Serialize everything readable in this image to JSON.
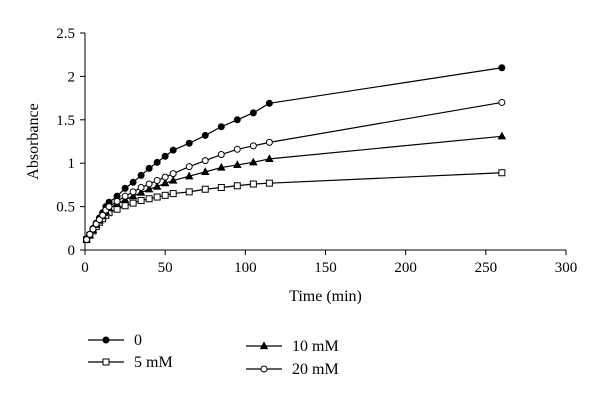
{
  "chart_data": {
    "type": "line",
    "xlabel": "Time (min)",
    "ylabel": "Absorbance",
    "xlim": [
      0,
      300
    ],
    "ylim": [
      0,
      2.5
    ],
    "xticks": [
      "0",
      "50",
      "100",
      "150",
      "200",
      "250",
      "300"
    ],
    "yticks": [
      "0",
      "0.5",
      "1",
      "1.5",
      "2",
      "2.5"
    ],
    "grid": false,
    "legend_position": "bottom",
    "series": [
      {
        "name": "0",
        "marker": "filled-circle",
        "x": [
          1,
          3,
          5,
          7,
          9,
          11,
          13,
          15,
          20,
          25,
          30,
          35,
          40,
          45,
          50,
          55,
          65,
          75,
          85,
          95,
          105,
          115,
          260
        ],
        "y": [
          0.13,
          0.18,
          0.25,
          0.31,
          0.37,
          0.43,
          0.5,
          0.55,
          0.62,
          0.71,
          0.78,
          0.86,
          0.94,
          1.01,
          1.08,
          1.15,
          1.23,
          1.32,
          1.42,
          1.5,
          1.58,
          1.69,
          2.1
        ]
      },
      {
        "name": "5 mM",
        "marker": "open-square",
        "x": [
          1,
          3,
          5,
          7,
          9,
          11,
          13,
          15,
          20,
          25,
          30,
          35,
          40,
          45,
          50,
          55,
          65,
          75,
          85,
          95,
          105,
          115,
          260
        ],
        "y": [
          0.12,
          0.17,
          0.22,
          0.27,
          0.32,
          0.36,
          0.4,
          0.43,
          0.47,
          0.51,
          0.54,
          0.57,
          0.59,
          0.61,
          0.63,
          0.65,
          0.67,
          0.7,
          0.72,
          0.74,
          0.76,
          0.77,
          0.89
        ]
      },
      {
        "name": "10 mM",
        "marker": "filled-triangle",
        "x": [
          1,
          3,
          5,
          7,
          9,
          11,
          13,
          15,
          20,
          25,
          30,
          35,
          40,
          45,
          50,
          55,
          65,
          75,
          85,
          95,
          105,
          115,
          260
        ],
        "y": [
          0.12,
          0.17,
          0.23,
          0.29,
          0.34,
          0.39,
          0.44,
          0.48,
          0.53,
          0.58,
          0.62,
          0.66,
          0.7,
          0.73,
          0.77,
          0.8,
          0.85,
          0.9,
          0.95,
          0.98,
          1.01,
          1.05,
          1.31
        ]
      },
      {
        "name": "20 mM",
        "marker": "open-circle",
        "x": [
          1,
          3,
          5,
          7,
          9,
          11,
          13,
          15,
          20,
          25,
          30,
          35,
          40,
          45,
          50,
          55,
          65,
          75,
          85,
          95,
          105,
          115,
          260
        ],
        "y": [
          0.12,
          0.18,
          0.24,
          0.3,
          0.35,
          0.4,
          0.46,
          0.5,
          0.56,
          0.62,
          0.67,
          0.72,
          0.76,
          0.8,
          0.84,
          0.88,
          0.96,
          1.03,
          1.1,
          1.16,
          1.2,
          1.24,
          1.7
        ]
      }
    ]
  }
}
